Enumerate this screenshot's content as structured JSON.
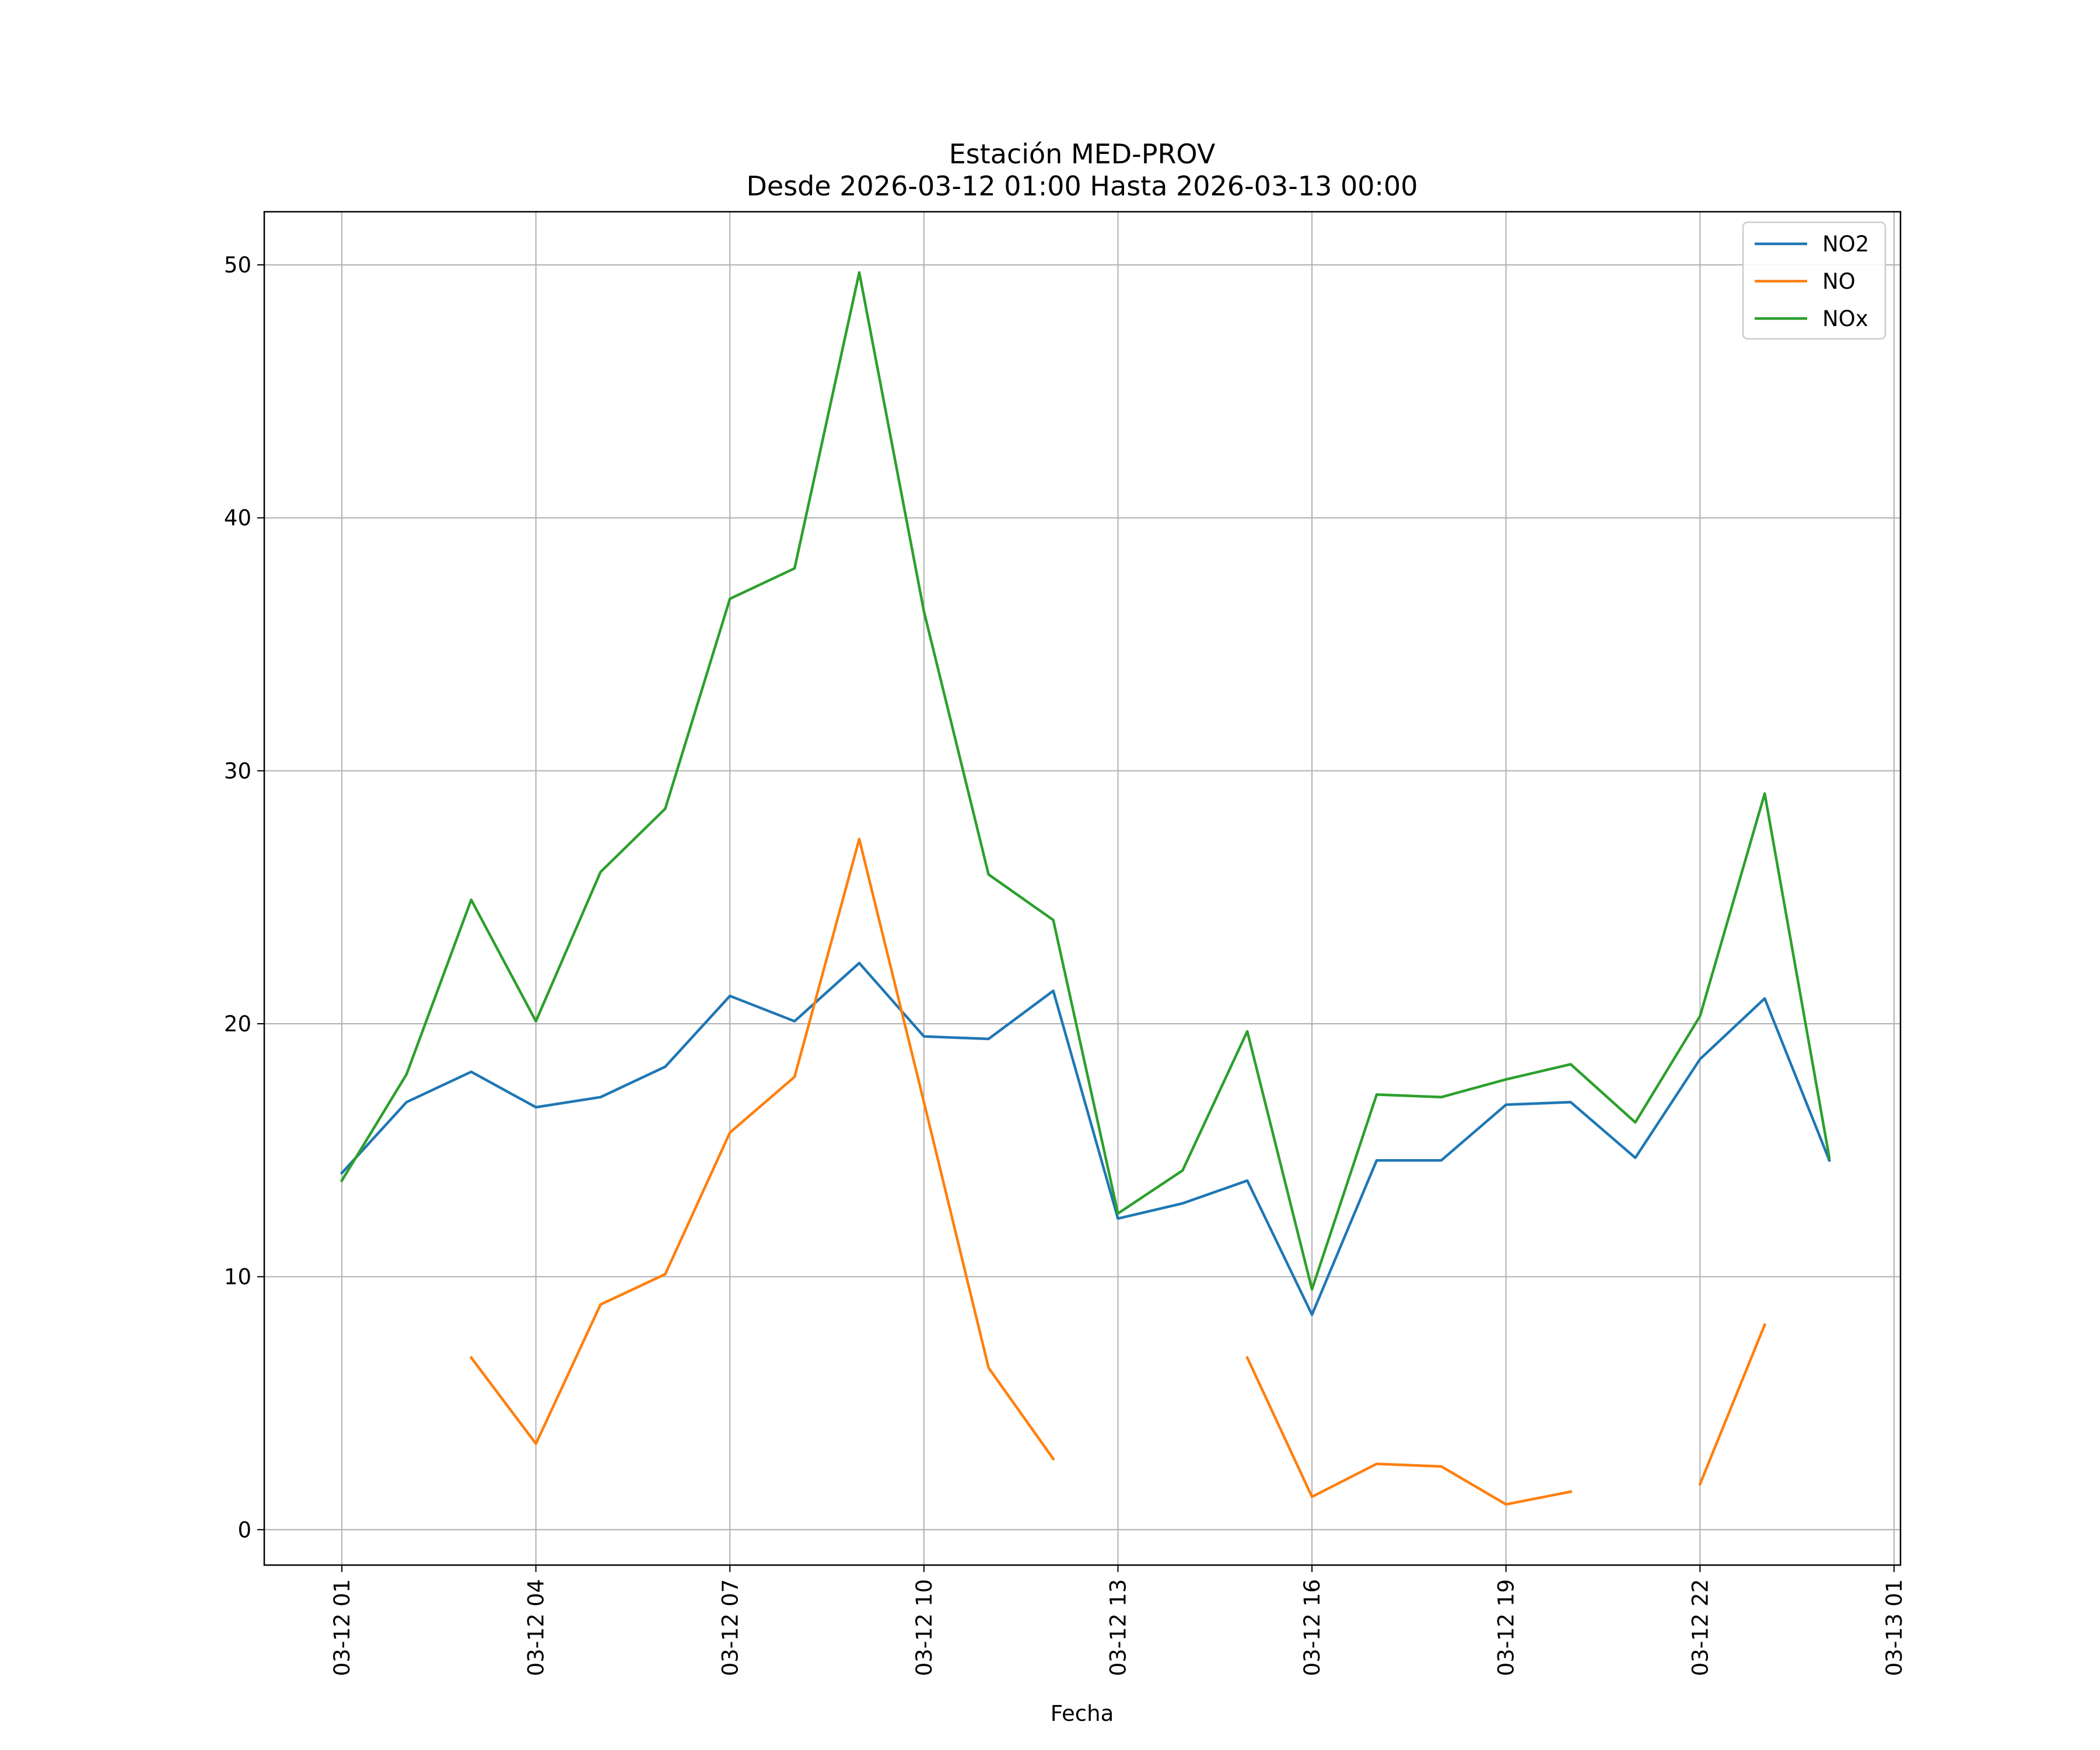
{
  "chart_data": {
    "type": "line",
    "title": "Estación MED-PROV",
    "subtitle": "Desde 2026-03-12 01:00 Hasta 2026-03-13 00:00",
    "xlabel": "Fecha",
    "ylabel": "",
    "x": [
      "03-12 01",
      "03-12 02",
      "03-12 03",
      "03-12 04",
      "03-12 05",
      "03-12 06",
      "03-12 07",
      "03-12 08",
      "03-12 09",
      "03-12 10",
      "03-12 11",
      "03-12 12",
      "03-12 13",
      "03-12 14",
      "03-12 15",
      "03-12 16",
      "03-12 17",
      "03-12 18",
      "03-12 19",
      "03-12 20",
      "03-12 21",
      "03-12 22",
      "03-12 23",
      "03-13 00"
    ],
    "x_hours": [
      0,
      1,
      2,
      3,
      4,
      5,
      6,
      7,
      8,
      9,
      10,
      11,
      12,
      13,
      14,
      15,
      16,
      17,
      18,
      19,
      20,
      21,
      22,
      23
    ],
    "xlim": [
      -1.2,
      24.1
    ],
    "xticks": [
      {
        "hour": 0,
        "label": "03-12 01"
      },
      {
        "hour": 3,
        "label": "03-12 04"
      },
      {
        "hour": 6,
        "label": "03-12 07"
      },
      {
        "hour": 9,
        "label": "03-12 10"
      },
      {
        "hour": 12,
        "label": "03-12 13"
      },
      {
        "hour": 15,
        "label": "03-12 16"
      },
      {
        "hour": 18,
        "label": "03-12 19"
      },
      {
        "hour": 21,
        "label": "03-12 22"
      },
      {
        "hour": 24,
        "label": "03-13 01"
      }
    ],
    "ylim": [
      -1.4,
      52.1
    ],
    "yticks": [
      0,
      10,
      20,
      30,
      40,
      50
    ],
    "grid": true,
    "legend_position": "top-right",
    "series": [
      {
        "name": "NO2",
        "color": "#1f77b4",
        "values": [
          14.1,
          16.9,
          18.1,
          16.7,
          17.1,
          18.3,
          21.1,
          20.1,
          22.4,
          19.5,
          19.4,
          21.3,
          12.3,
          12.9,
          13.8,
          8.5,
          14.6,
          14.6,
          16.8,
          16.9,
          14.7,
          18.6,
          21.0,
          14.6
        ]
      },
      {
        "name": "NO",
        "color": "#ff7f0e",
        "values": [
          null,
          null,
          6.8,
          3.4,
          8.9,
          10.1,
          15.7,
          17.9,
          27.3,
          16.9,
          6.4,
          2.8,
          null,
          null,
          6.8,
          1.3,
          2.6,
          2.5,
          1.0,
          1.5,
          null,
          1.8,
          8.1,
          null
        ]
      },
      {
        "name": "NOx",
        "color": "#2ca02c",
        "values": [
          13.8,
          18.0,
          24.9,
          20.1,
          26.0,
          28.5,
          36.8,
          38.0,
          49.7,
          36.3,
          25.9,
          24.1,
          12.5,
          14.2,
          19.7,
          9.5,
          17.2,
          17.1,
          17.8,
          18.4,
          16.1,
          20.3,
          29.1,
          14.7
        ]
      }
    ]
  }
}
